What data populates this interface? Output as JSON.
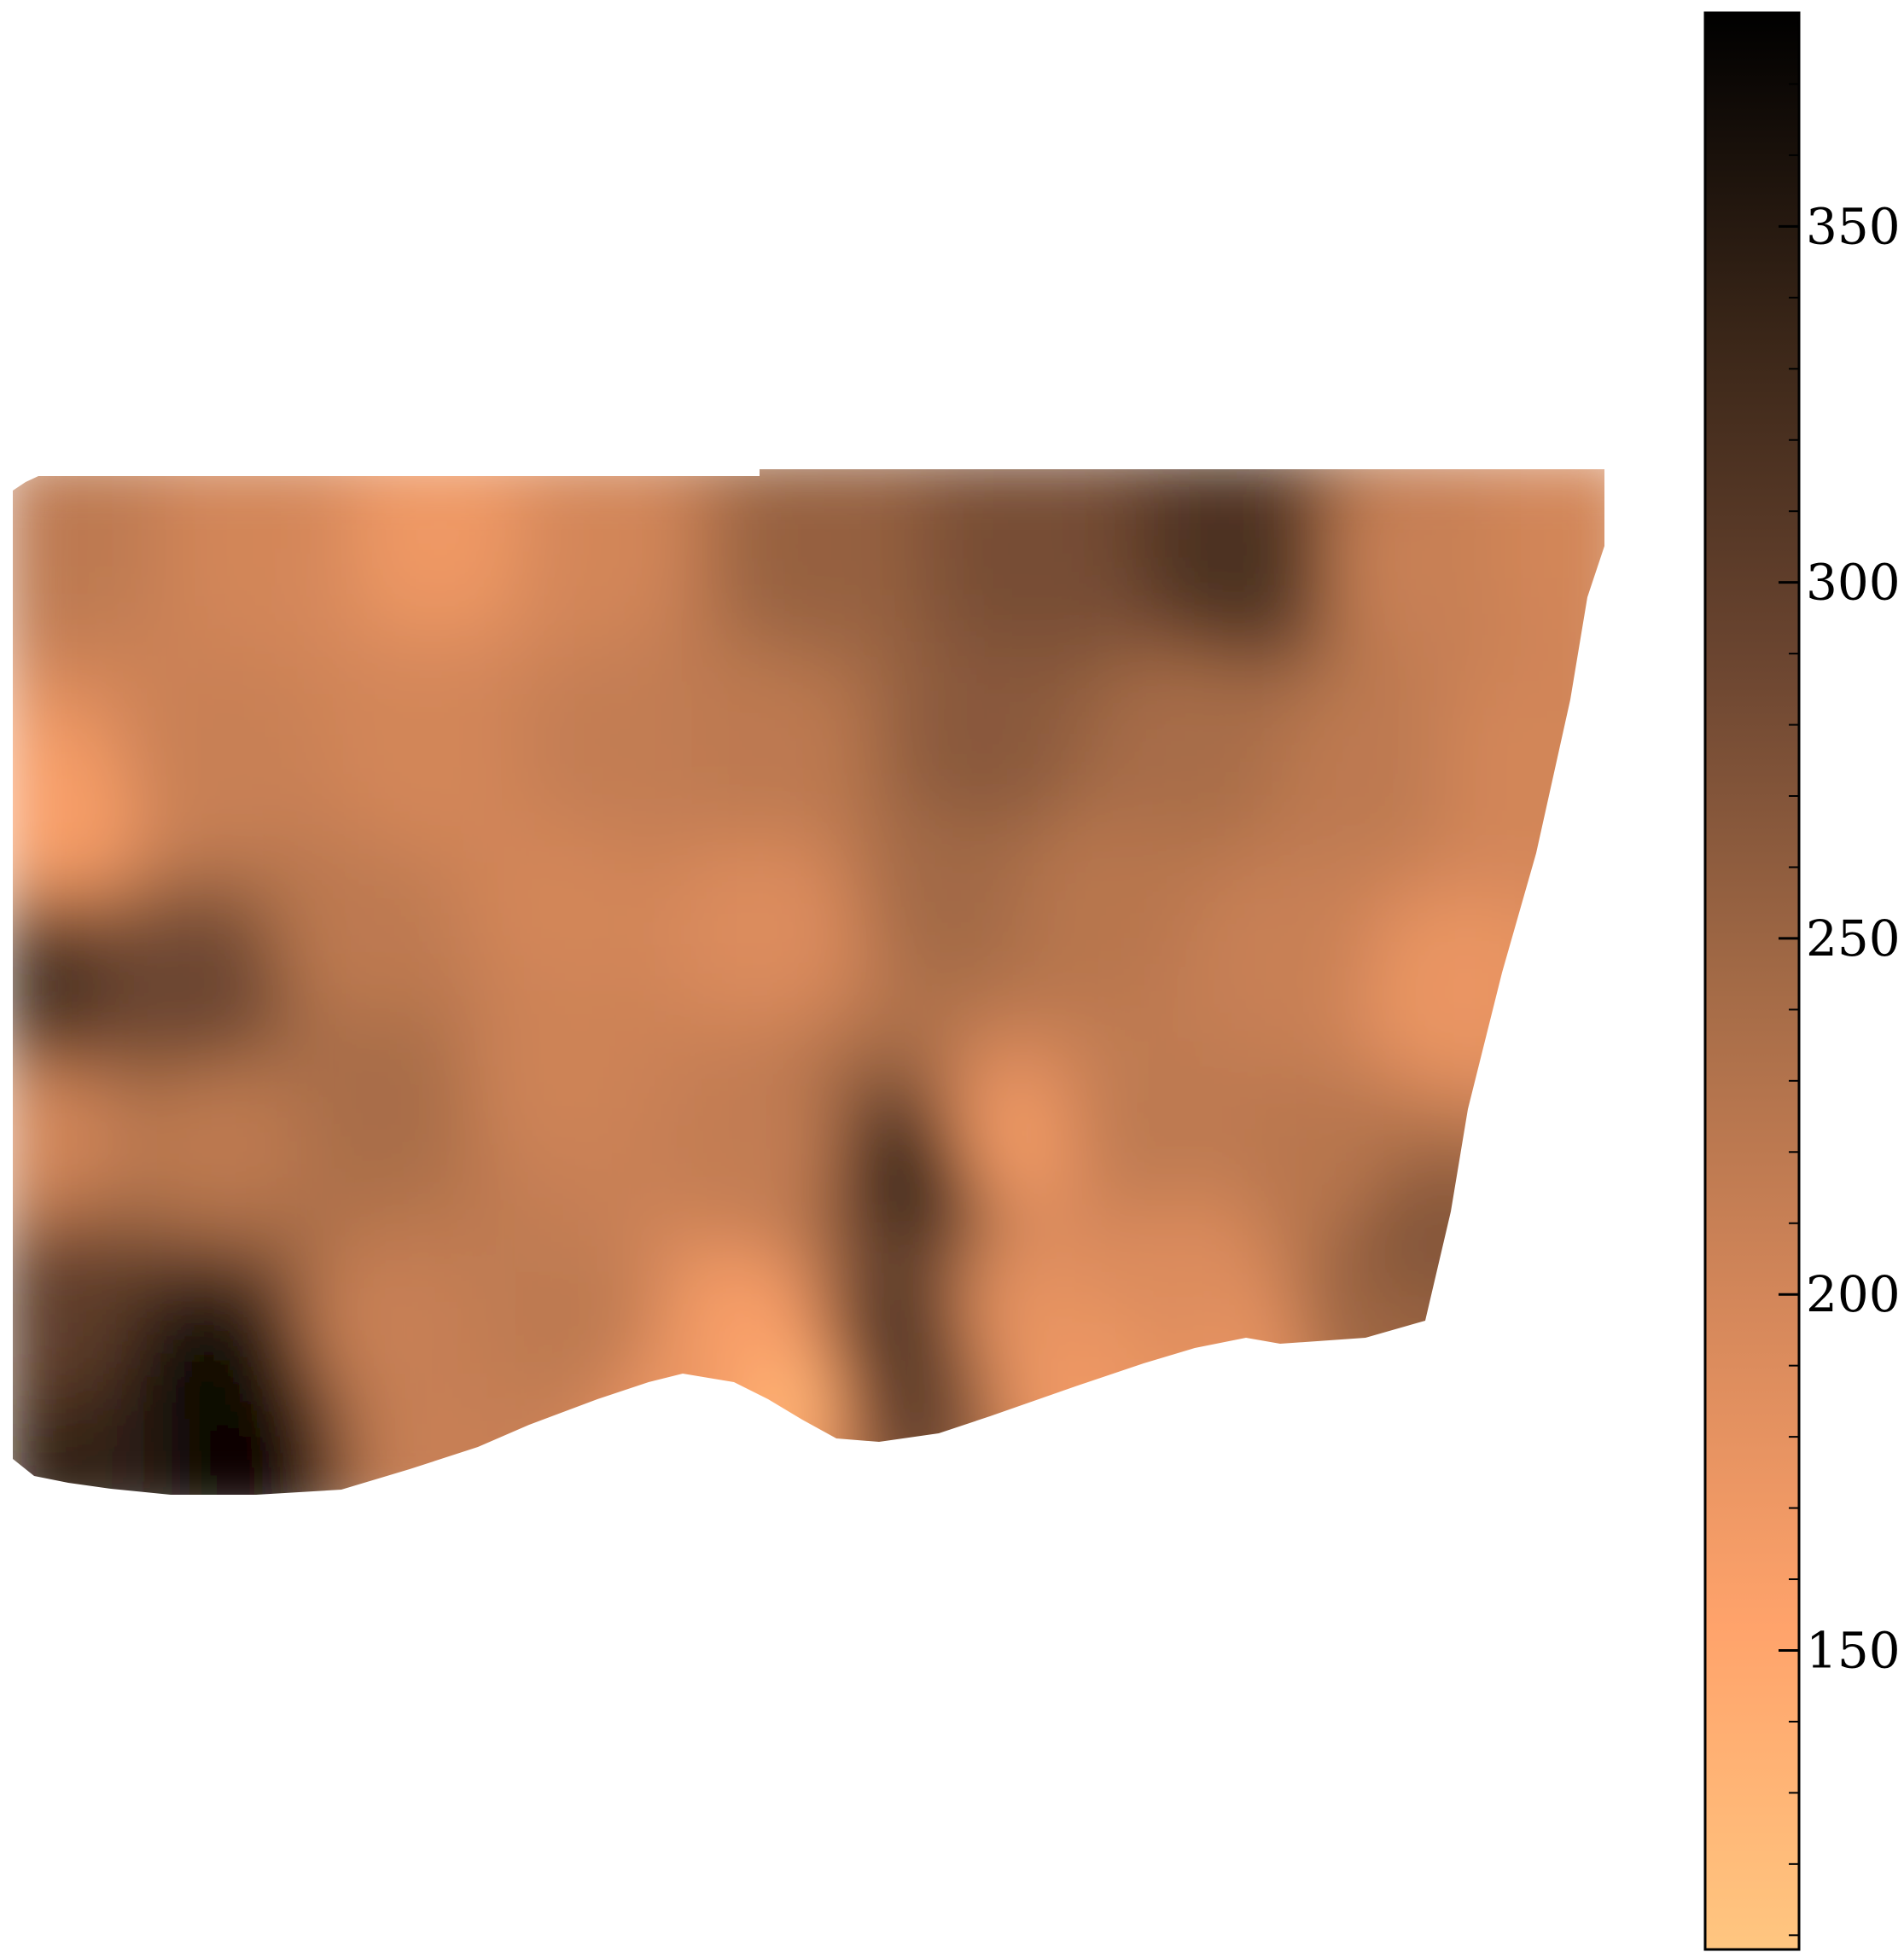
{
  "chart_data": {
    "type": "heatmap",
    "title": "",
    "xlabel": "",
    "ylabel": "",
    "colormap": "copper_r",
    "colormap_stops": [
      "#ffc680",
      "#ffa36b",
      "#d4875a",
      "#a36a46",
      "#6b4530",
      "#3a2618",
      "#000000"
    ],
    "axes_visible": false,
    "colorbar": {
      "orientation": "vertical",
      "position": "right",
      "range": [
        108,
        380
      ],
      "ticks": [
        150,
        200,
        250,
        300,
        350
      ],
      "tick_labels": [
        "150",
        "200",
        "250",
        "300",
        "350"
      ]
    },
    "value_range": [
      108,
      380
    ],
    "grid": false
  }
}
